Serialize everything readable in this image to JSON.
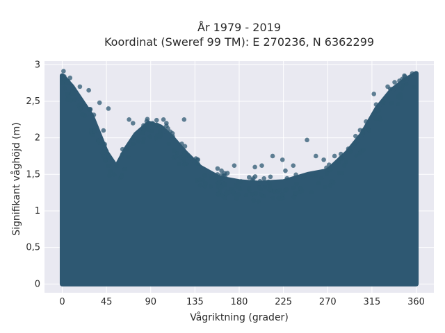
{
  "chart_data": {
    "type": "scatter",
    "title": "År 1979 - 2019",
    "subtitle": "Koordinat (Sweref 99 TM): E 270236, N 6362299",
    "xlabel": "Vågriktning (grader)",
    "ylabel": "Signifikant våghöjd (m)",
    "xlim": [
      -18,
      378
    ],
    "ylim": [
      -0.12,
      3.05
    ],
    "xticks": [
      0,
      45,
      90,
      135,
      180,
      225,
      270,
      315,
      360
    ],
    "xtick_labels": [
      "0",
      "45",
      "90",
      "135",
      "180",
      "225",
      "270",
      "315",
      "360"
    ],
    "yticks": [
      0,
      0.5,
      1,
      1.5,
      2,
      2.5,
      3
    ],
    "ytick_labels": [
      "0",
      "0,5",
      "1",
      "1,5",
      "2",
      "2,5",
      "3"
    ],
    "grid": true,
    "marker_color": "#2e5872",
    "background_color": "#e9e9f1",
    "envelope": [
      {
        "x": 0,
        "y": 2.85
      },
      {
        "x": 10,
        "y": 2.7
      },
      {
        "x": 20,
        "y": 2.5
      },
      {
        "x": 30,
        "y": 2.3
      },
      {
        "x": 45,
        "y": 1.8
      },
      {
        "x": 55,
        "y": 1.6
      },
      {
        "x": 65,
        "y": 1.85
      },
      {
        "x": 75,
        "y": 2.05
      },
      {
        "x": 88,
        "y": 2.2
      },
      {
        "x": 100,
        "y": 2.15
      },
      {
        "x": 112,
        "y": 2.0
      },
      {
        "x": 125,
        "y": 1.8
      },
      {
        "x": 140,
        "y": 1.6
      },
      {
        "x": 160,
        "y": 1.45
      },
      {
        "x": 180,
        "y": 1.4
      },
      {
        "x": 200,
        "y": 1.38
      },
      {
        "x": 225,
        "y": 1.4
      },
      {
        "x": 250,
        "y": 1.5
      },
      {
        "x": 270,
        "y": 1.55
      },
      {
        "x": 290,
        "y": 1.8
      },
      {
        "x": 305,
        "y": 2.05
      },
      {
        "x": 320,
        "y": 2.4
      },
      {
        "x": 335,
        "y": 2.65
      },
      {
        "x": 350,
        "y": 2.8
      },
      {
        "x": 360,
        "y": 2.88
      }
    ],
    "outliers": [
      {
        "x": 2,
        "y": 2.84
      },
      {
        "x": 5,
        "y": 2.75
      },
      {
        "x": 8,
        "y": 2.82
      },
      {
        "x": 12,
        "y": 2.6
      },
      {
        "x": 18,
        "y": 2.7
      },
      {
        "x": 27,
        "y": 2.65
      },
      {
        "x": 38,
        "y": 2.48
      },
      {
        "x": 42,
        "y": 2.1
      },
      {
        "x": 47,
        "y": 2.4
      },
      {
        "x": 68,
        "y": 2.25
      },
      {
        "x": 72,
        "y": 2.2
      },
      {
        "x": 92,
        "y": 2.2
      },
      {
        "x": 96,
        "y": 2.18
      },
      {
        "x": 103,
        "y": 2.25
      },
      {
        "x": 106,
        "y": 2.2
      },
      {
        "x": 124,
        "y": 2.25
      },
      {
        "x": 138,
        "y": 1.7
      },
      {
        "x": 158,
        "y": 1.58
      },
      {
        "x": 162,
        "y": 1.55
      },
      {
        "x": 175,
        "y": 1.62
      },
      {
        "x": 196,
        "y": 1.6
      },
      {
        "x": 203,
        "y": 1.62
      },
      {
        "x": 214,
        "y": 1.75
      },
      {
        "x": 224,
        "y": 1.7
      },
      {
        "x": 227,
        "y": 1.55
      },
      {
        "x": 235,
        "y": 1.62
      },
      {
        "x": 249,
        "y": 1.97
      },
      {
        "x": 258,
        "y": 1.75
      },
      {
        "x": 266,
        "y": 1.7
      },
      {
        "x": 277,
        "y": 1.75
      },
      {
        "x": 283,
        "y": 1.72
      },
      {
        "x": 291,
        "y": 1.85
      },
      {
        "x": 306,
        "y": 2.1
      },
      {
        "x": 311,
        "y": 2.12
      },
      {
        "x": 317,
        "y": 2.6
      },
      {
        "x": 326,
        "y": 2.5
      },
      {
        "x": 331,
        "y": 2.7
      },
      {
        "x": 343,
        "y": 2.78
      },
      {
        "x": 348,
        "y": 2.85
      },
      {
        "x": 356,
        "y": 2.88
      },
      {
        "x": 358,
        "y": 2.7
      }
    ]
  }
}
